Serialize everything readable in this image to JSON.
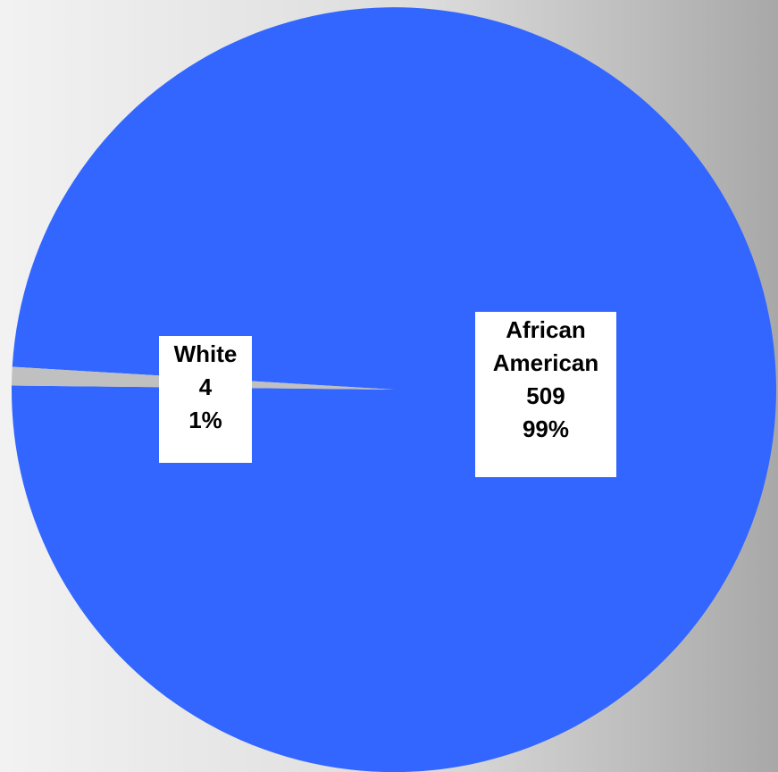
{
  "chart_data": {
    "type": "pie",
    "title": "",
    "slices": [
      {
        "label": "African American",
        "label_lines": [
          "African",
          "American"
        ],
        "value": 509,
        "percent": "99%",
        "color": "#3366ff"
      },
      {
        "label": "White",
        "label_lines": [
          "White"
        ],
        "value": 4,
        "percent": "1%",
        "color": "#c0c0c0"
      }
    ],
    "legend": "none",
    "data_labels": "inside"
  }
}
